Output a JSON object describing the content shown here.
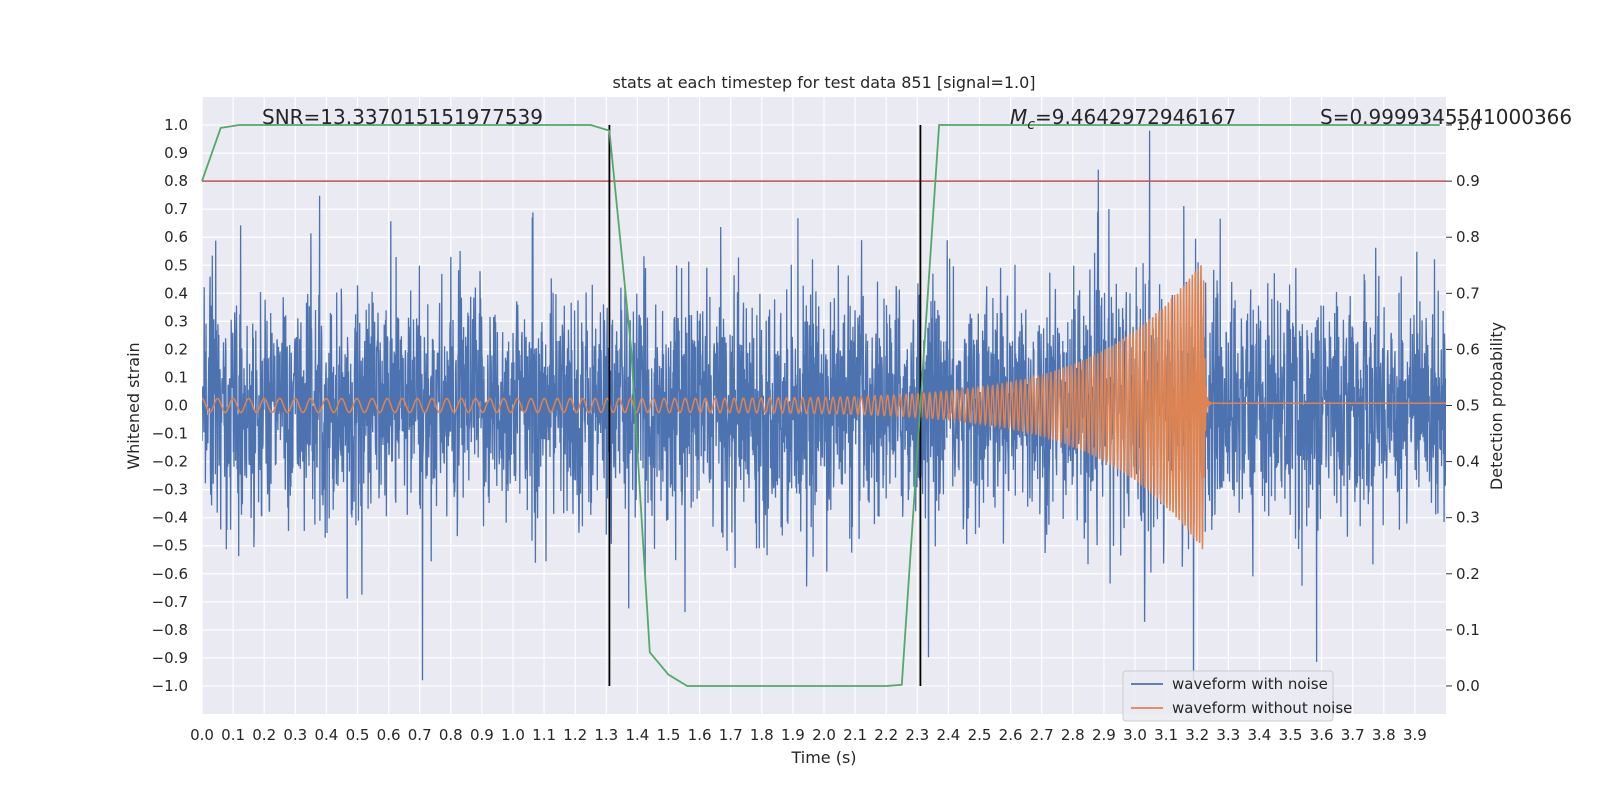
{
  "chart_data": {
    "type": "line",
    "title": "stats at each timestep for test data 851 [signal=1.0]",
    "xlabel": "Time (s)",
    "ylabel": "Whitened strain",
    "ylabel_right": "Detection probability",
    "xlim": [
      0.0,
      4.0
    ],
    "ylim": [
      -1.1,
      1.1
    ],
    "ylim_right": [
      -0.05,
      1.05
    ],
    "x_ticks": [
      0.0,
      0.1,
      0.2,
      0.3,
      0.4,
      0.5,
      0.6,
      0.7,
      0.8,
      0.9,
      1.0,
      1.1,
      1.2,
      1.3,
      1.4,
      1.5,
      1.6,
      1.7,
      1.8,
      1.9,
      2.0,
      2.1,
      2.2,
      2.3,
      2.4,
      2.5,
      2.6,
      2.7,
      2.8,
      2.9,
      3.0,
      3.1,
      3.2,
      3.3,
      3.4,
      3.5,
      3.6,
      3.7,
      3.8,
      3.9
    ],
    "y_ticks": [
      1.0,
      0.9,
      0.8,
      0.7,
      0.6,
      0.5,
      0.4,
      0.3,
      0.2,
      0.1,
      0.0,
      -0.1,
      -0.2,
      -0.3,
      -0.4,
      -0.5,
      -0.6,
      -0.7,
      -0.8,
      -0.9,
      -1.0
    ],
    "y_ticks_right": [
      0.0,
      0.1,
      0.2,
      0.3,
      0.4,
      0.5,
      0.6,
      0.7,
      0.8,
      0.9,
      1.0
    ],
    "grid": true,
    "legend_position": "lower-right",
    "series": [
      {
        "name": "waveform with noise",
        "color": "#4c72b0",
        "kind": "noise",
        "amplitude_range": [
          -0.98,
          0.98
        ],
        "duration": [
          0.0,
          4.0
        ]
      },
      {
        "name": "waveform without noise",
        "color": "#dd8452",
        "kind": "chirp",
        "start_amplitude": 0.025,
        "peak_amplitude": 0.52,
        "merger_time": 3.22,
        "start_frequency_hz": 20,
        "end_frequency_hz": 110
      }
    ],
    "detection_probability": {
      "color": "#55a868",
      "axis": "right",
      "x": [
        0.0,
        0.06,
        0.12,
        1.25,
        1.31,
        1.38,
        1.44,
        1.5,
        1.56,
        2.2,
        2.25,
        2.31,
        2.37,
        2.43,
        3.98
      ],
      "y": [
        0.9,
        0.995,
        1.0,
        1.0,
        0.99,
        0.6,
        0.06,
        0.02,
        0.0,
        0.0,
        0.002,
        0.5,
        1.0,
        1.0,
        1.0
      ]
    },
    "threshold": {
      "value": 0.9,
      "axis": "right",
      "color": "#c44e52"
    },
    "markers": {
      "color": "#000000",
      "x": [
        1.31,
        2.31
      ],
      "y_range": [
        -1.0,
        1.0
      ]
    },
    "annotations": [
      {
        "name": "snr-annotation",
        "text": "SNR=13.337015151977539"
      },
      {
        "name": "chirp-mass-annotation",
        "text": "M",
        "sub": "c",
        "rest": "=9.4642972946167"
      },
      {
        "name": "signal-annotation",
        "text": "S=0.9999345541000366"
      }
    ]
  }
}
